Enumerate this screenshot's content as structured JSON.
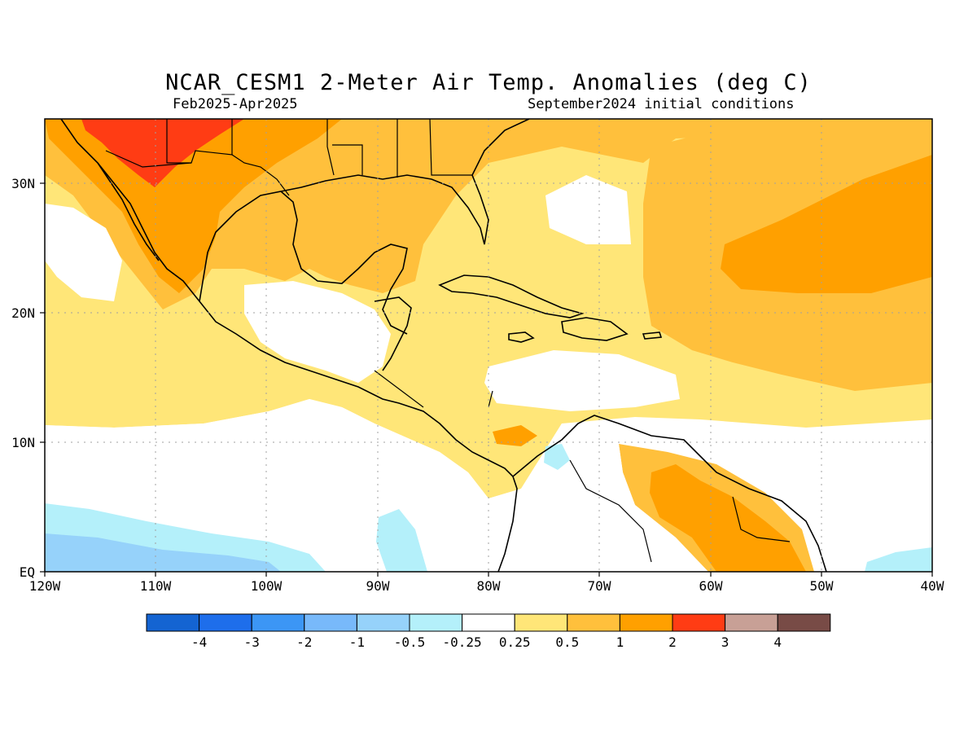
{
  "title": "NCAR_CESM1 2-Meter Air Temp. Anomalies (deg C)",
  "subtitle_left": "Feb2025-Apr2025",
  "subtitle_right": "September2024 initial conditions",
  "map": {
    "region": "Central America / Caribbean",
    "lon_range": [
      -120,
      -40
    ],
    "lat_range": [
      0,
      35
    ],
    "grid": true,
    "lon_labels": [
      "120W",
      "110W",
      "100W",
      "90W",
      "80W",
      "70W",
      "60W",
      "50W",
      "40W"
    ],
    "lat_labels": [
      "EQ",
      "10N",
      "20N",
      "30N"
    ]
  },
  "colorbar": {
    "labels": [
      "-4",
      "-3",
      "-2",
      "-1",
      "-0.5",
      "-0.25",
      "0.25",
      "0.5",
      "1",
      "2",
      "3",
      "4"
    ],
    "colors": [
      "#1464d2",
      "#1e6eeb",
      "#3c96f5",
      "#78b9fa",
      "#96d2fa",
      "#b4f0fa",
      "#ffffff",
      "#ffe678",
      "#ffc03c",
      "#ffa000",
      "#ff3c14",
      "#c8a096",
      "#784b46"
    ]
  }
}
